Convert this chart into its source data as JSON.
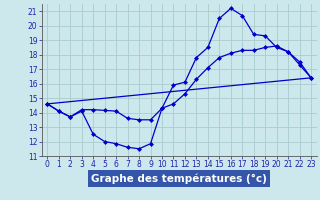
{
  "background_color": "#cce8ec",
  "grid_color": "#aacccc",
  "line_color": "#0000cc",
  "xlabel": "Graphe des températures (°c)",
  "xlabel_fontsize": 7.5,
  "xlim": [
    -0.5,
    23.5
  ],
  "ylim": [
    11,
    21.5
  ],
  "yticks": [
    11,
    12,
    13,
    14,
    15,
    16,
    17,
    18,
    19,
    20,
    21
  ],
  "xticks": [
    0,
    1,
    2,
    3,
    4,
    5,
    6,
    7,
    8,
    9,
    10,
    11,
    12,
    13,
    14,
    15,
    16,
    17,
    18,
    19,
    20,
    21,
    22,
    23
  ],
  "tick_fontsize": 5.5,
  "line1_x": [
    0,
    1,
    2,
    3,
    4,
    5,
    6,
    7,
    8,
    9,
    10,
    11,
    12,
    13,
    14,
    15,
    16,
    17,
    18,
    19,
    20,
    21,
    22,
    23
  ],
  "line1_y": [
    14.6,
    14.1,
    13.7,
    14.1,
    12.5,
    12.0,
    11.85,
    11.6,
    11.5,
    11.85,
    14.3,
    15.9,
    16.1,
    17.8,
    18.5,
    20.5,
    21.2,
    20.7,
    19.4,
    19.3,
    18.5,
    18.2,
    17.3,
    16.4
  ],
  "line2_x": [
    0,
    1,
    2,
    3,
    4,
    5,
    6,
    7,
    8,
    9,
    10,
    11,
    12,
    13,
    14,
    15,
    16,
    17,
    18,
    19,
    20,
    21,
    22,
    23
  ],
  "line2_y": [
    14.6,
    14.1,
    13.7,
    14.2,
    14.2,
    14.15,
    14.1,
    13.6,
    13.5,
    13.5,
    14.3,
    14.6,
    15.3,
    16.3,
    17.1,
    17.8,
    18.1,
    18.3,
    18.3,
    18.5,
    18.6,
    18.2,
    17.5,
    16.4
  ],
  "line3_x": [
    0,
    23
  ],
  "line3_y": [
    14.6,
    16.4
  ],
  "xlabel_bg": "#3355aa",
  "xlabel_fg": "#ffffff"
}
